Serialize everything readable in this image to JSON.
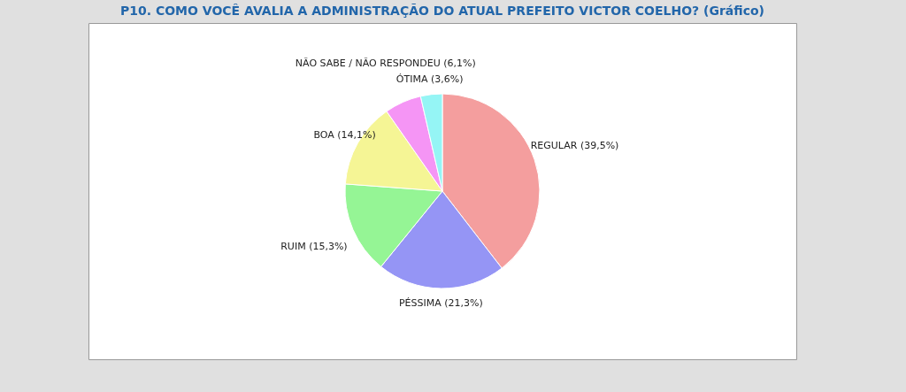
{
  "chart_data": {
    "type": "pie",
    "title": "P10. COMO VOCÊ AVALIA A ADMINISTRAÇÃO DO ATUAL PREFEITO  VICTOR COELHO? (Gráfico)",
    "categories": [
      "REGULAR (39,5%)",
      "PÉSSIMA (21,3%)",
      "RUIM (15,3%)",
      "BOA (14,1%)",
      "NÃO SABE / NÃO RESPONDEU (6,1%)",
      "ÓTIMA (3,6%)"
    ],
    "values": [
      39.5,
      21.3,
      15.3,
      14.1,
      6.1,
      3.6
    ],
    "colors": [
      "#f49999",
      "#9090f5",
      "#90f590",
      "#f5f590",
      "#f590f5",
      "#90f5f5"
    ],
    "legend": false
  }
}
